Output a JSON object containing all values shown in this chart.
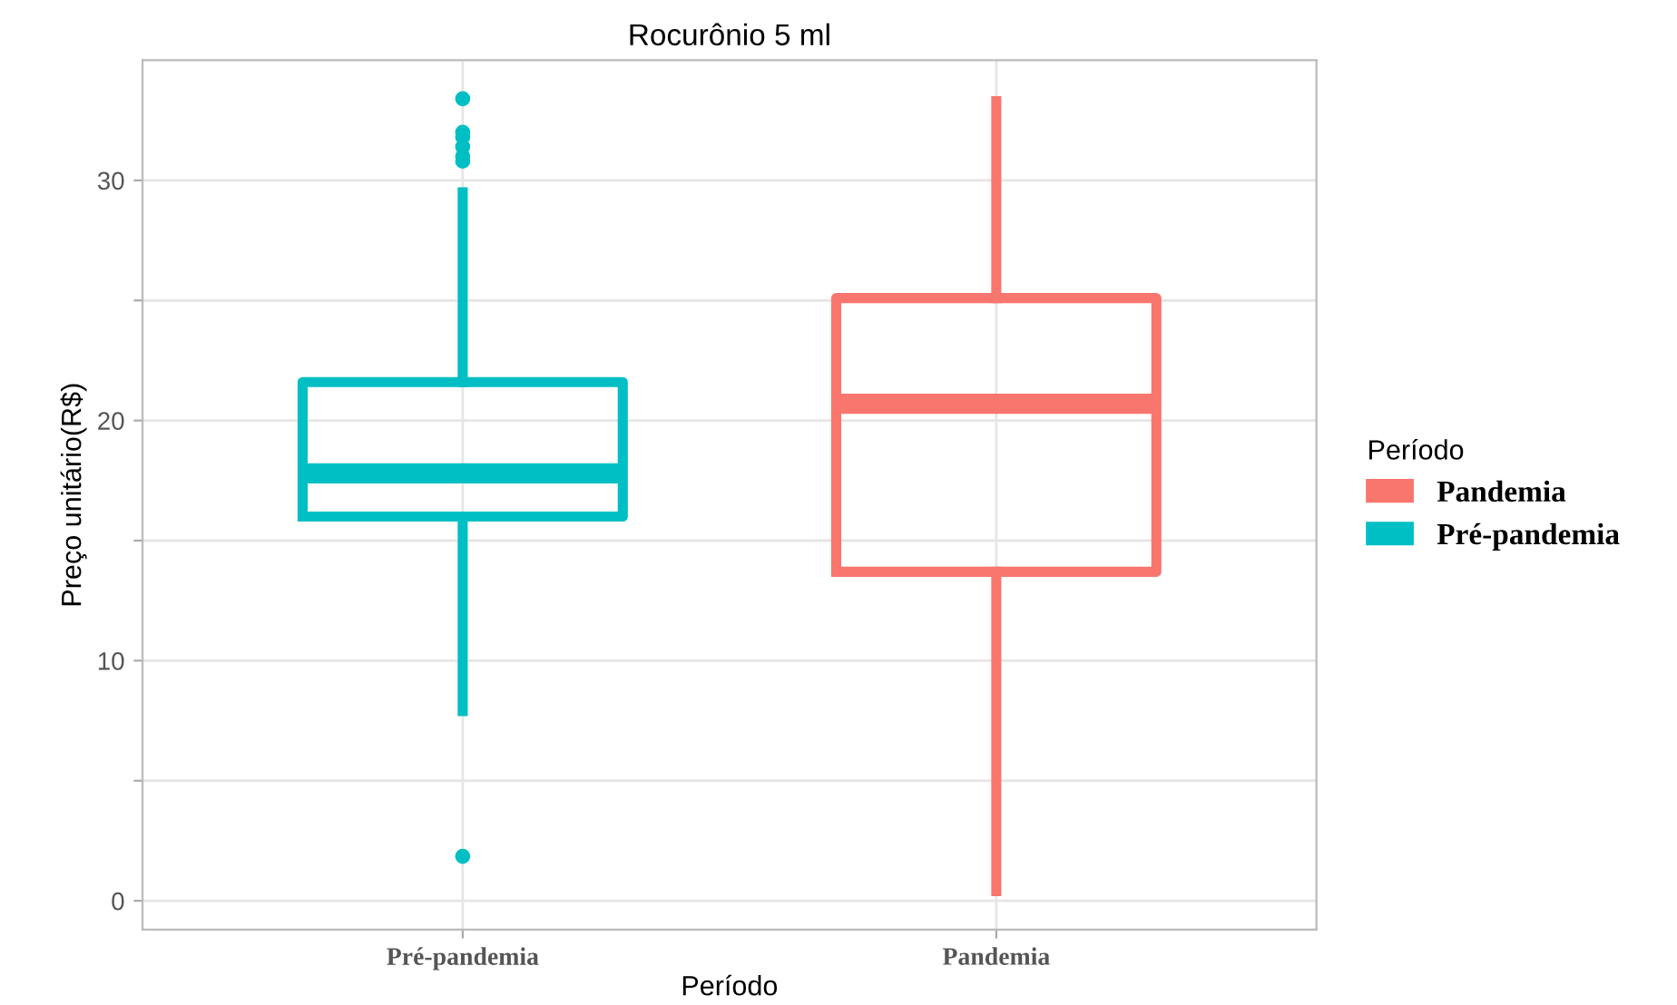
{
  "chart_data": {
    "type": "box",
    "title": "Rocurônio 5 ml",
    "xlabel": "Período",
    "ylabel": "Preço unitário(R$)",
    "legend_title": "Período",
    "categories": [
      "Pré-pandemia",
      "Pandemia"
    ],
    "series": [
      {
        "name": "Pandemia",
        "color": "#f8766d",
        "boxes": [
          null,
          {
            "low": 0.4,
            "q1": 13.7,
            "median": 20.7,
            "q3": 25.1,
            "high": 33.3
          }
        ]
      },
      {
        "name": "Pré-pandemia",
        "color": "#00bfc4",
        "boxes": [
          {
            "low": 7.9,
            "q1": 16.0,
            "median": 17.8,
            "q3": 21.6,
            "high": 29.5,
            "outliers": [
              33.4,
              32.0,
              31.8,
              31.4,
              31.0,
              30.8,
              1.85
            ]
          },
          null
        ]
      }
    ],
    "ylim": [
      -1.2,
      35.0
    ],
    "yticks": [
      0,
      {
        "value": 5,
        "label": null
      },
      10,
      {
        "value": 15,
        "label": null
      },
      20,
      {
        "value": 25,
        "label": null
      },
      30
    ],
    "grid": true,
    "legend": "right"
  }
}
